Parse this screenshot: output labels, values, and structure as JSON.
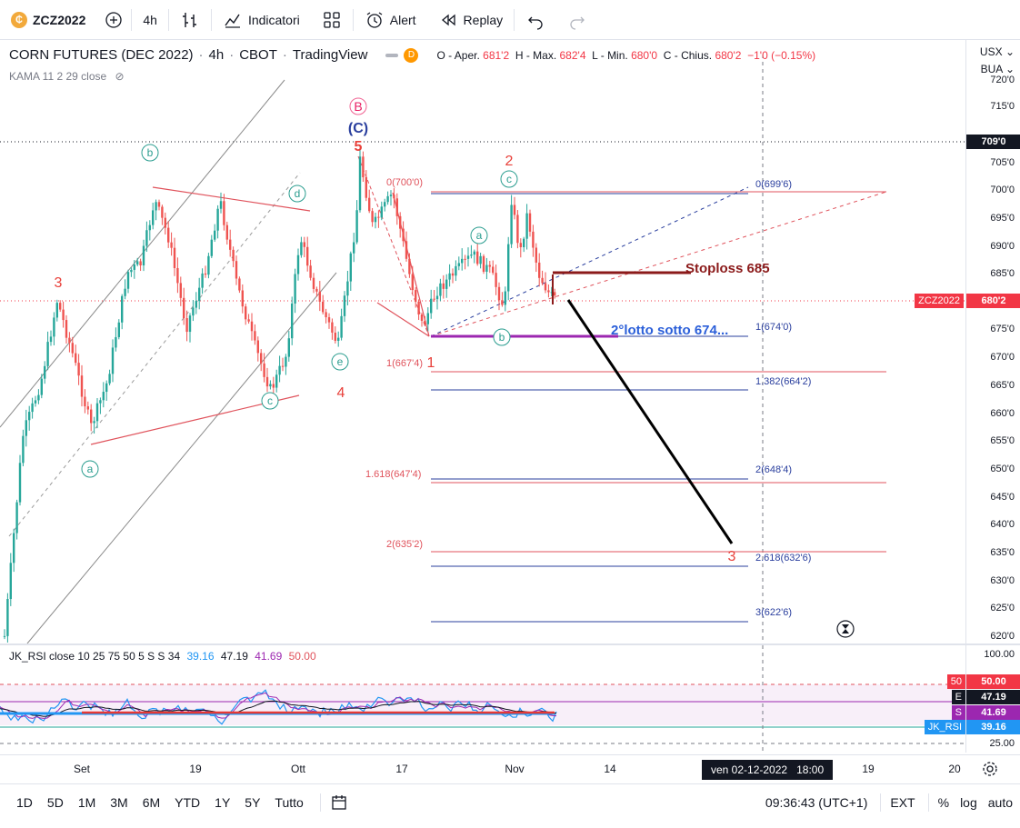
{
  "toolbar": {
    "symbol": "ZCZ2022",
    "interval": "4h",
    "indicators_label": "Indicatori",
    "alert_label": "Alert",
    "replay_label": "Replay"
  },
  "legend": {
    "title": "CORN FUTURES (DEC 2022)",
    "interval": "4h",
    "exchange": "CBOT",
    "source": "TradingView",
    "badge": "D",
    "open_label": "O - Aper.",
    "open_value": "681'2",
    "high_label": "H - Max.",
    "high_value": "682'4",
    "low_label": "L - Min.",
    "low_value": "680'0",
    "close_label": "C - Chius.",
    "close_value": "680'2",
    "change": "−1'0 (−0.15%)",
    "indicator": "KAMA 11 2 29 close"
  },
  "price_scale": {
    "currency": "USX",
    "unit": "BUA",
    "labels": [
      "720'0",
      "715'0",
      "705'0",
      "700'0",
      "695'0",
      "690'0",
      "685'0",
      "675'0",
      "670'0",
      "665'0",
      "660'0",
      "655'0",
      "650'0",
      "645'0",
      "640'0",
      "635'0",
      "630'0",
      "625'0",
      "620'0"
    ],
    "marker_709": "709'0",
    "current_symbol": "ZCZ2022",
    "current_price": "680'2"
  },
  "annotations": {
    "stoploss": "Stoploss 685",
    "second_lot": "2°lotto sotto 674...",
    "wave_B": "B",
    "wave_C": "(C)",
    "wave_5": "5",
    "wave_2": "2",
    "wave_3_left": "3",
    "wave_4": "4",
    "wave_1": "1",
    "wave_3_target": "3",
    "sub_a1": "a",
    "sub_b1": "b",
    "sub_c1": "c",
    "sub_d1": "d",
    "sub_e1": "e",
    "sub_a2": "a",
    "sub_b2": "b",
    "sub_c2": "c"
  },
  "fib_left": [
    "0(700'0)",
    "1(667'4)",
    "1.618(647'4)",
    "2(635'2)"
  ],
  "fib_right": [
    "0(699'6)",
    "1(674'0)",
    "1.382(664'2)",
    "2(648'4)",
    "2.618(632'6)",
    "3(622'6)"
  ],
  "rsi": {
    "name": "JK_RSI close 10 25 75 50 5 S S 34",
    "v1": "39.16",
    "v2": "47.19",
    "v3": "41.69",
    "v4": "50.00",
    "scale": [
      "100.00",
      "25.00"
    ],
    "badge_50_tag": "50",
    "badge_50": "50.00",
    "badge_e_tag": "E",
    "badge_e": "47.19",
    "badge_s_tag": "S",
    "badge_s": "41.69",
    "badge_rsi_tag": "JK_RSI",
    "badge_rsi": "39.16"
  },
  "time_axis": {
    "labels": [
      "Set",
      "19",
      "Ott",
      "17",
      "Nov",
      "14",
      "19",
      "20"
    ],
    "cursor_label": "ven 02-12-2022",
    "cursor_time": "18:00"
  },
  "bottom": {
    "ranges": [
      "1D",
      "5D",
      "1M",
      "3M",
      "6M",
      "YTD",
      "1Y",
      "5Y",
      "Tutto"
    ],
    "clock": "09:36:43 (UTC+1)",
    "ext": "EXT",
    "percent": "%",
    "log": "log",
    "auto": "auto"
  },
  "colors": {
    "up": "#26a69a",
    "down": "#ef5350",
    "fib_red": "#e0535c",
    "fib_blue": "#2a3f9e",
    "stoploss": "#8b1a1a",
    "second_lot": "#2b5fd9",
    "wave_red": "#e8403a",
    "wave_teal": "#2a9d8f"
  }
}
